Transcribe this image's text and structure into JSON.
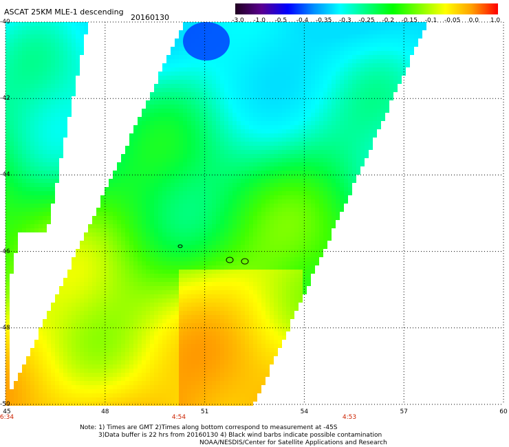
{
  "header": {
    "title": "ASCAT 25KM MLE-1 descending",
    "date": "20160130"
  },
  "colorbar": {
    "labels": [
      "-3.0",
      "-1.0",
      "-0.5",
      "-0.4",
      "-0.35",
      "-0.3",
      "-0.25",
      "-0.2",
      "-0.15",
      "-0.1",
      "-0.05",
      "0.0",
      "1.0"
    ]
  },
  "axes": {
    "y_labels": [
      "-40",
      "-42",
      "-44",
      "-46",
      "-48",
      "-50"
    ],
    "x_labels": [
      "45",
      "48",
      "51",
      "54",
      "57",
      "60"
    ],
    "time_labels": [
      "6:34",
      "4:54",
      "4:53"
    ]
  },
  "notes": {
    "line1": "Note: 1) Times are GMT 2)Times along bottom correspond to measurement at -45S",
    "line2": "3)Data buffer is 22 hrs from 20160130 4) Black wind barbs indicate possible contamination",
    "line3": "NOAA/NESDIS/Center for Satellite Applications and Research"
  },
  "colors": {
    "colorbar_stops": [
      "#200020",
      "#5a0090",
      "#0000ff",
      "#0090ff",
      "#00ffff",
      "#00ff80",
      "#00ff00",
      "#80ff00",
      "#ffff00",
      "#ffa000",
      "#ff0000"
    ]
  }
}
